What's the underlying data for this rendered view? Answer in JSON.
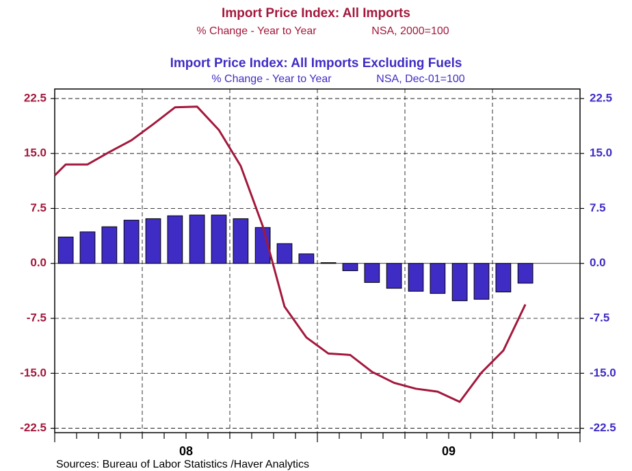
{
  "chart_data": {
    "type": "bar+line",
    "series": [
      {
        "name": "Import Price Index: All Imports",
        "subtitle": "% Change - Year to Year",
        "note": "NSA, 2000=100",
        "type": "line",
        "color": "#a3183c",
        "axis": "y",
        "x": [
          2008.0,
          2008.042,
          2008.125,
          2008.208,
          2008.292,
          2008.375,
          2008.458,
          2008.542,
          2008.625,
          2008.708,
          2008.792,
          2008.875,
          2008.958,
          2009.042,
          2009.125,
          2009.208,
          2009.292,
          2009.375,
          2009.458,
          2009.542,
          2009.625,
          2009.708,
          2009.792
        ],
        "values": [
          12.0,
          13.5,
          13.5,
          15.2,
          16.8,
          19.0,
          21.3,
          21.4,
          18.2,
          13.3,
          5.1,
          -5.9,
          -10.1,
          -12.3,
          -12.5,
          -14.8,
          -16.3,
          -17.1,
          -17.5,
          -18.9,
          -14.9,
          -11.9,
          -5.6
        ]
      },
      {
        "name": "Import Price Index: All Imports Excluding Fuels",
        "subtitle": "% Change - Year to Year",
        "note": "NSA, Dec-01=100",
        "type": "bar",
        "color": "#3f2cc4",
        "axis": "y2",
        "x": [
          2008.042,
          2008.125,
          2008.208,
          2008.292,
          2008.375,
          2008.458,
          2008.542,
          2008.625,
          2008.708,
          2008.792,
          2008.875,
          2008.958,
          2009.042,
          2009.125,
          2009.208,
          2009.292,
          2009.375,
          2009.458,
          2009.542,
          2009.625,
          2009.708,
          2009.792
        ],
        "values": [
          3.6,
          4.3,
          5.0,
          5.9,
          6.1,
          6.5,
          6.6,
          6.6,
          6.1,
          4.9,
          2.7,
          1.3,
          0.1,
          -1.0,
          -2.6,
          -3.4,
          -3.8,
          -4.1,
          -5.1,
          -4.9,
          -3.9,
          -2.7
        ]
      }
    ],
    "xlim": [
      2008.0,
      2010.0
    ],
    "xticks": [
      {
        "value": 2008.5,
        "label": "08"
      },
      {
        "value": 2009.5,
        "label": "09"
      }
    ],
    "ylim": [
      -23.1,
      23.8
    ],
    "yticks": [
      22.5,
      {
        "value": 15,
        "label": "15.0"
      },
      7.5,
      {
        "value": 0,
        "label": "0.0"
      },
      -7.5,
      {
        "value": -15,
        "label": "-15.0"
      },
      -22.5
    ],
    "y2lim": [
      -23.1,
      23.8
    ],
    "y2ticks": [
      22.5,
      {
        "value": 15,
        "label": "15.0"
      },
      7.5,
      {
        "value": 0,
        "label": "0.0"
      },
      -7.5,
      {
        "value": -15,
        "label": "-15.0"
      },
      -22.5
    ],
    "grid": true,
    "source": "Sources:  Bureau of Labor Statistics /Haver Analytics"
  }
}
